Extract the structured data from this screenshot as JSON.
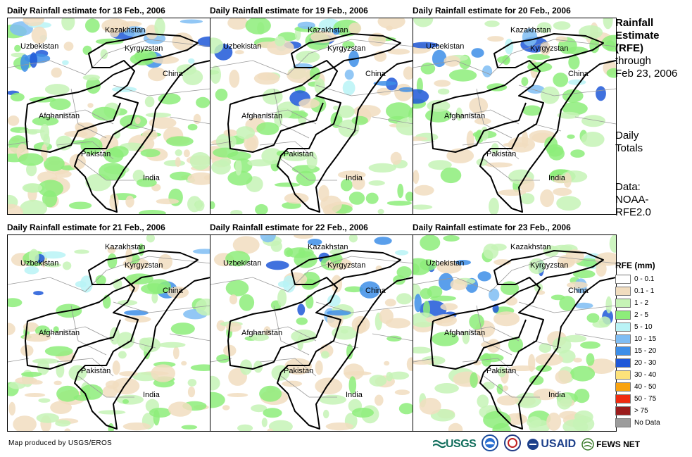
{
  "panels": [
    {
      "title": "Daily Rainfall estimate for 18 Feb., 2006",
      "level": 0.9
    },
    {
      "title": "Daily Rainfall estimate for 19 Feb., 2006",
      "level": 0.75
    },
    {
      "title": "Daily Rainfall estimate for 20 Feb., 2006",
      "level": 0.45
    },
    {
      "title": "Daily Rainfall estimate for 21 Feb., 2006",
      "level": 0.6
    },
    {
      "title": "Daily Rainfall estimate for 22 Feb., 2006",
      "level": 0.55
    },
    {
      "title": "Daily Rainfall estimate for 23 Feb., 2006",
      "level": 0.8
    }
  ],
  "labels": {
    "kazakhstan": "Kazakhstan",
    "uzbekistan": "Uzbekistan",
    "kyrgyzstan": "Kyrgyzstan",
    "china": "China",
    "afghanistan": "Afghanistan",
    "pakistan": "Pakistan",
    "india": "India"
  },
  "side": {
    "title_bold_1": "Rainfall",
    "title_bold_2": "Estimate",
    "title_bold_3": "(RFE)",
    "title_line_4": "through",
    "title_line_5": "Feb 23, 2006",
    "daily_1": "Daily",
    "daily_2": "Totals",
    "data_1": "Data:",
    "data_2": "NOAA-",
    "data_3": "RFE2.0"
  },
  "legend": {
    "title": "RFE (mm)",
    "items": [
      {
        "label": "0 - 0.1",
        "color": "#ffffff"
      },
      {
        "label": "0.1 - 1",
        "color": "#f1ddbf"
      },
      {
        "label": "1 - 2",
        "color": "#c6f3b6"
      },
      {
        "label": "2 - 5",
        "color": "#8ded7a"
      },
      {
        "label": "5 - 10",
        "color": "#b9f3f6"
      },
      {
        "label": "10 - 15",
        "color": "#7fbdf3"
      },
      {
        "label": "15 - 20",
        "color": "#3d8ee8"
      },
      {
        "label": "20 - 30",
        "color": "#1f58d8"
      },
      {
        "label": "30 - 40",
        "color": "#fde27a"
      },
      {
        "label": "40 - 50",
        "color": "#f9a30f"
      },
      {
        "label": "50 - 75",
        "color": "#ef2b10"
      },
      {
        "label": "> 75",
        "color": "#9b1c1c"
      },
      {
        "label": "No Data",
        "color": "#9c9c9c"
      }
    ]
  },
  "credit": "Map produced by USGS/EROS",
  "logos": {
    "usgs": "USGS",
    "usaid": "USAID",
    "fewsnet": "FEWS NET"
  }
}
